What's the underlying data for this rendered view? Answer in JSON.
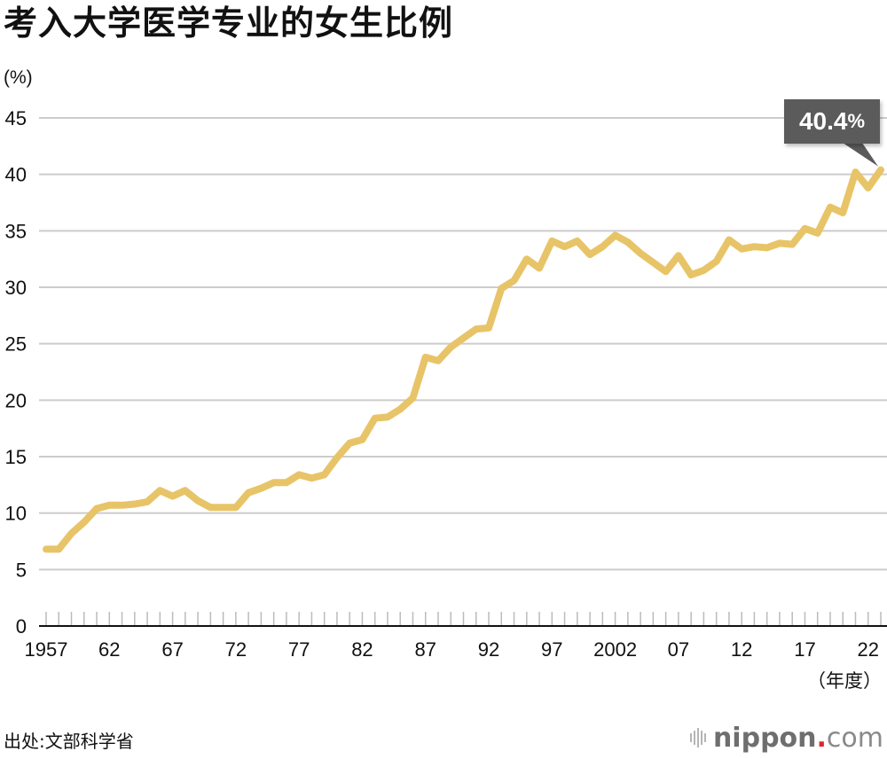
{
  "title": "考入大学医学专业的女生比例",
  "y_unit": "(%)",
  "x_unit": "（年度）",
  "source": "出处:文部科学省",
  "logo": {
    "main": "nippon",
    "dot": ".",
    "suffix": "com"
  },
  "callout": {
    "value": "40.4",
    "suffix": "%"
  },
  "colors": {
    "line": "#E8C468",
    "grid": "#cccccc",
    "axis": "#111111",
    "callout_bg": "#5b5b5b",
    "logo_dot": "#e0262b"
  },
  "chart_data": {
    "type": "line",
    "title": "考入大学医学专业的女生比例",
    "xlabel": "（年度）",
    "ylabel": "(%)",
    "ylim": [
      0,
      45
    ],
    "yticks": [
      0,
      5,
      10,
      15,
      20,
      25,
      30,
      35,
      40,
      45
    ],
    "xtick_labels": [
      {
        "year": 1957,
        "label": "1957"
      },
      {
        "year": 1962,
        "label": "62"
      },
      {
        "year": 1967,
        "label": "67"
      },
      {
        "year": 1972,
        "label": "72"
      },
      {
        "year": 1977,
        "label": "77"
      },
      {
        "year": 1982,
        "label": "82"
      },
      {
        "year": 1987,
        "label": "87"
      },
      {
        "year": 1992,
        "label": "92"
      },
      {
        "year": 1997,
        "label": "97"
      },
      {
        "year": 2002,
        "label": "2002"
      },
      {
        "year": 2007,
        "label": "07"
      },
      {
        "year": 2012,
        "label": "12"
      },
      {
        "year": 2017,
        "label": "17"
      },
      {
        "year": 2022,
        "label": "22"
      }
    ],
    "grid": true,
    "legend": "none",
    "annotation": {
      "year": 2023,
      "text": "40.4%"
    },
    "series": [
      {
        "name": "女生比例",
        "x": [
          1957,
          1958,
          1959,
          1960,
          1961,
          1962,
          1963,
          1964,
          1965,
          1966,
          1967,
          1968,
          1969,
          1970,
          1971,
          1972,
          1973,
          1974,
          1975,
          1976,
          1977,
          1978,
          1979,
          1980,
          1981,
          1982,
          1983,
          1984,
          1985,
          1986,
          1987,
          1988,
          1989,
          1990,
          1991,
          1992,
          1993,
          1994,
          1995,
          1996,
          1997,
          1998,
          1999,
          2000,
          2001,
          2002,
          2003,
          2004,
          2005,
          2006,
          2007,
          2008,
          2009,
          2010,
          2011,
          2012,
          2013,
          2014,
          2015,
          2016,
          2017,
          2018,
          2019,
          2020,
          2021,
          2022,
          2023
        ],
        "values": [
          6.8,
          6.8,
          8.2,
          9.2,
          10.4,
          10.7,
          10.7,
          10.8,
          11.0,
          12.0,
          11.5,
          12.0,
          11.1,
          10.5,
          10.5,
          10.5,
          11.8,
          12.2,
          12.7,
          12.7,
          13.4,
          13.1,
          13.4,
          14.9,
          16.2,
          16.5,
          18.4,
          18.5,
          19.2,
          20.2,
          23.8,
          23.5,
          24.7,
          25.5,
          26.3,
          26.4,
          29.9,
          30.6,
          32.5,
          31.7,
          34.1,
          33.6,
          34.1,
          32.9,
          33.6,
          34.6,
          34.0,
          33.0,
          32.2,
          31.4,
          32.8,
          31.1,
          31.5,
          32.3,
          34.2,
          33.4,
          33.6,
          33.5,
          33.9,
          33.8,
          35.2,
          34.8,
          37.1,
          36.6,
          40.2,
          38.8,
          40.4
        ]
      }
    ]
  }
}
